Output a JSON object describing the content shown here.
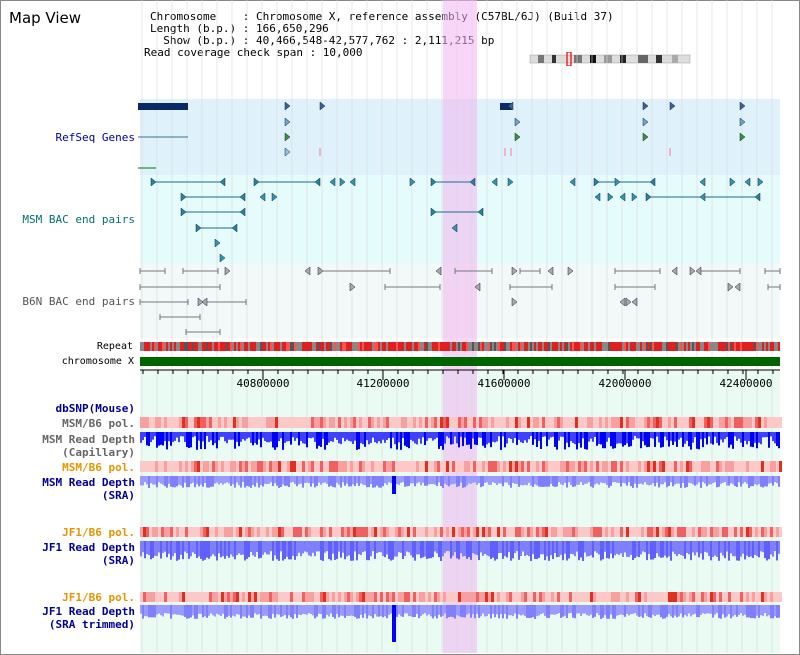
{
  "header": {
    "title": "Map View",
    "info_lines": [
      "Chromosome    : Chromosome X, reference assembly (C57BL/6J) (Build 37)",
      "Length (b.p.) : 166,650,296",
      "  Show (b.p.) : 40,466,548-42,577,762 : 2,111,215 bp",
      "Read coverage check span : 10,000"
    ]
  },
  "tracks": {
    "refseq_label": "RefSeq Genes",
    "msm_bac_label": "MSM BAC end pairs",
    "b6n_bac_label": "B6N BAC end pairs",
    "repeat_label": "Repeat",
    "chromosome_label": "chromosome X",
    "snp_label": "dbSNP(Mouse)",
    "msm_b6_pol_label": "MSM/B6 pol.",
    "msm_depth_cap_label_1": "MSM Read Depth",
    "msm_depth_cap_label_2": "(Capillary)",
    "msm_b6_pol2_label": "MSM/B6 pol.",
    "msm_depth_sra_label_1": "MSM Read Depth",
    "msm_depth_sra_label_2": "(SRA)",
    "jf1_b6_pol_label": "JF1/B6 pol.",
    "jf1_depth_sra_label_1": "JF1 Read Depth",
    "jf1_depth_sra_label_2": "(SRA)",
    "jf1_b6_pol2_label": "JF1/B6 pol.",
    "jf1_depth_trim_label_1": "JF1 Read Depth",
    "jf1_depth_trim_label_2": "(SRA trimmed)"
  },
  "axis": {
    "ticks": [
      "40800000",
      "41200000",
      "41600000",
      "42000000",
      "42400000"
    ]
  },
  "colors": {
    "refseq_bg": "#dff1fb",
    "msm_bac_bg": "#e6fbfb",
    "b6n_bac_bg": "#f2f7f7",
    "lower_bg": "#e9fbf3",
    "highlight": "#f6d4f3",
    "chromosome": "#006400",
    "depth_dark": "#0000ff",
    "depth_light": "#8080ff",
    "label_navy": "#000099",
    "label_orange": "#e69500",
    "label_teal": "#007070"
  }
}
